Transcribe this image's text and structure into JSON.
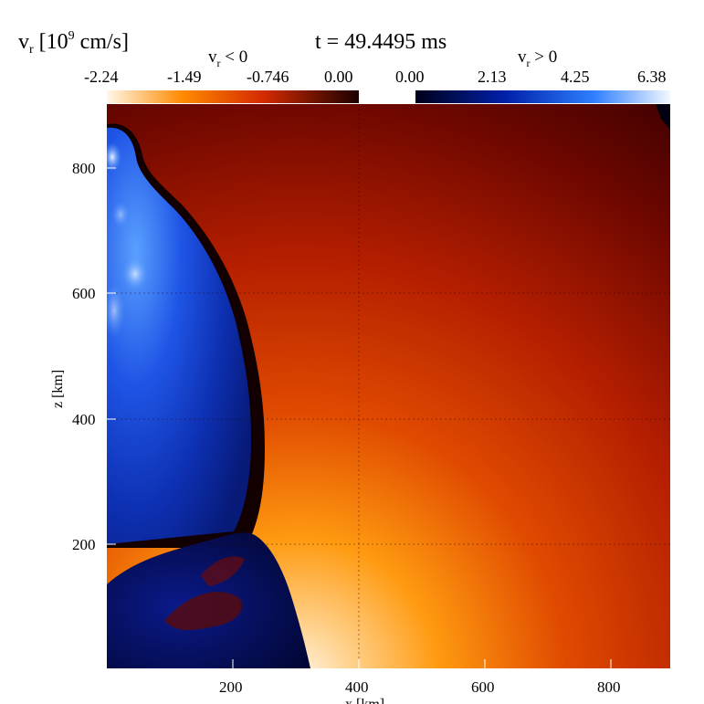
{
  "header": {
    "quantity_main": "v",
    "quantity_sub": "r",
    "quantity_rest": " [10",
    "quantity_exp": "9",
    "quantity_unit": " cm/s]",
    "time_label": "t = 49.4495 ms"
  },
  "colorbar": {
    "negative_label_main": "v",
    "negative_label_sub": "r",
    "negative_label_rest": " < 0",
    "positive_label_main": "v",
    "positive_label_sub": "r",
    "positive_label_rest": " > 0",
    "negative_ticks": [
      "-2.24",
      "-1.49",
      "-0.746",
      "0.00"
    ],
    "positive_ticks": [
      "0.00",
      "2.13",
      "4.25",
      "6.38"
    ],
    "colors": {
      "neg_min": "#fff7e8",
      "neg_mid": "#ff8a00",
      "neg_deep": "#d42a00",
      "neg_zero": "#1a0000",
      "pos_zero": "#00001a",
      "pos_mid": "#0033cc",
      "pos_max": "#f2f8ff"
    }
  },
  "axes": {
    "x_label": "x [km]",
    "y_label": "z [km]",
    "x_ticks": [
      "200",
      "400",
      "600",
      "800"
    ],
    "y_ticks": [
      "200",
      "400",
      "600",
      "800"
    ]
  }
}
